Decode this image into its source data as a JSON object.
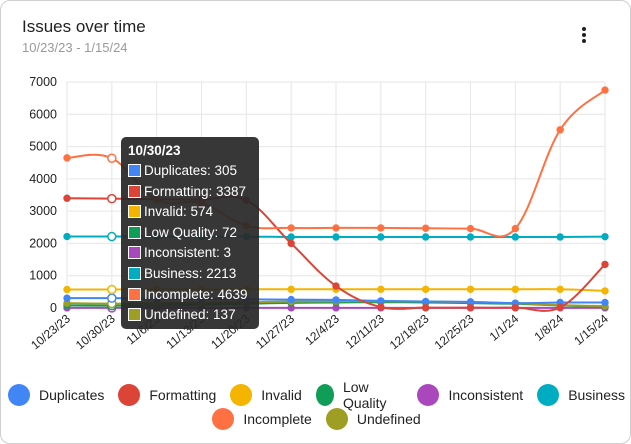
{
  "card": {
    "title": "Issues over time",
    "subtitle": "10/23/23 - 1/15/24",
    "menu_icon": "more-vert-icon"
  },
  "chart_data": {
    "type": "line",
    "title": "Issues over time",
    "categories": [
      "10/23/23",
      "10/30/23",
      "11/6/23",
      "11/13/23",
      "11/20/23",
      "11/27/23",
      "12/4/23",
      "12/11/23",
      "12/18/23",
      "12/25/23",
      "1/1/24",
      "1/8/24",
      "1/15/24"
    ],
    "ylim": [
      0,
      7000
    ],
    "yticks": [
      0,
      1000,
      2000,
      3000,
      4000,
      5000,
      6000,
      7000
    ],
    "grid": true,
    "legend_position": "bottom",
    "series": [
      {
        "name": "Duplicates",
        "color": "#4285f4",
        "values": [
          305,
          305,
          290,
          280,
          270,
          260,
          250,
          220,
          200,
          190,
          150,
          170,
          170
        ]
      },
      {
        "name": "Formatting",
        "color": "#db4437",
        "values": [
          3400,
          3387,
          3370,
          3360,
          3340,
          2000,
          680,
          30,
          10,
          10,
          10,
          20,
          1350
        ]
      },
      {
        "name": "Invalid",
        "color": "#f4b400",
        "values": [
          574,
          574,
          580,
          580,
          580,
          580,
          580,
          580,
          580,
          580,
          580,
          580,
          530
        ]
      },
      {
        "name": "Low Quality",
        "color": "#0f9d58",
        "values": [
          80,
          72,
          80,
          100,
          130,
          160,
          170,
          180,
          170,
          150,
          130,
          80,
          40
        ]
      },
      {
        "name": "Inconsistent",
        "color": "#ab47bc",
        "values": [
          5,
          3,
          5,
          5,
          5,
          5,
          5,
          5,
          5,
          5,
          5,
          5,
          5
        ]
      },
      {
        "name": "Business",
        "color": "#00acc1",
        "values": [
          2213,
          2213,
          2213,
          2210,
          2210,
          2200,
          2200,
          2200,
          2200,
          2200,
          2200,
          2200,
          2210
        ]
      },
      {
        "name": "Incomplete",
        "color": "#ff7043",
        "values": [
          4650,
          4639,
          3350,
          3250,
          2550,
          2480,
          2480,
          2480,
          2470,
          2460,
          2460,
          5520,
          6750
        ]
      },
      {
        "name": "Undefined",
        "color": "#9e9d24",
        "values": [
          150,
          137,
          150,
          160,
          180,
          200,
          210,
          210,
          200,
          180,
          150,
          90,
          60
        ]
      }
    ]
  },
  "tooltip": {
    "date": "10/30/23",
    "rows": [
      {
        "label": "Duplicates: 305",
        "color": "#4285f4"
      },
      {
        "label": "Formatting: 3387",
        "color": "#db4437"
      },
      {
        "label": "Invalid: 574",
        "color": "#f4b400"
      },
      {
        "label": "Low Quality: 72",
        "color": "#0f9d58"
      },
      {
        "label": "Inconsistent: 3",
        "color": "#ab47bc"
      },
      {
        "label": "Business: 2213",
        "color": "#00acc1"
      },
      {
        "label": "Incomplete: 4639",
        "color": "#ff7043"
      },
      {
        "label": "Undefined: 137",
        "color": "#9e9d24"
      }
    ]
  }
}
